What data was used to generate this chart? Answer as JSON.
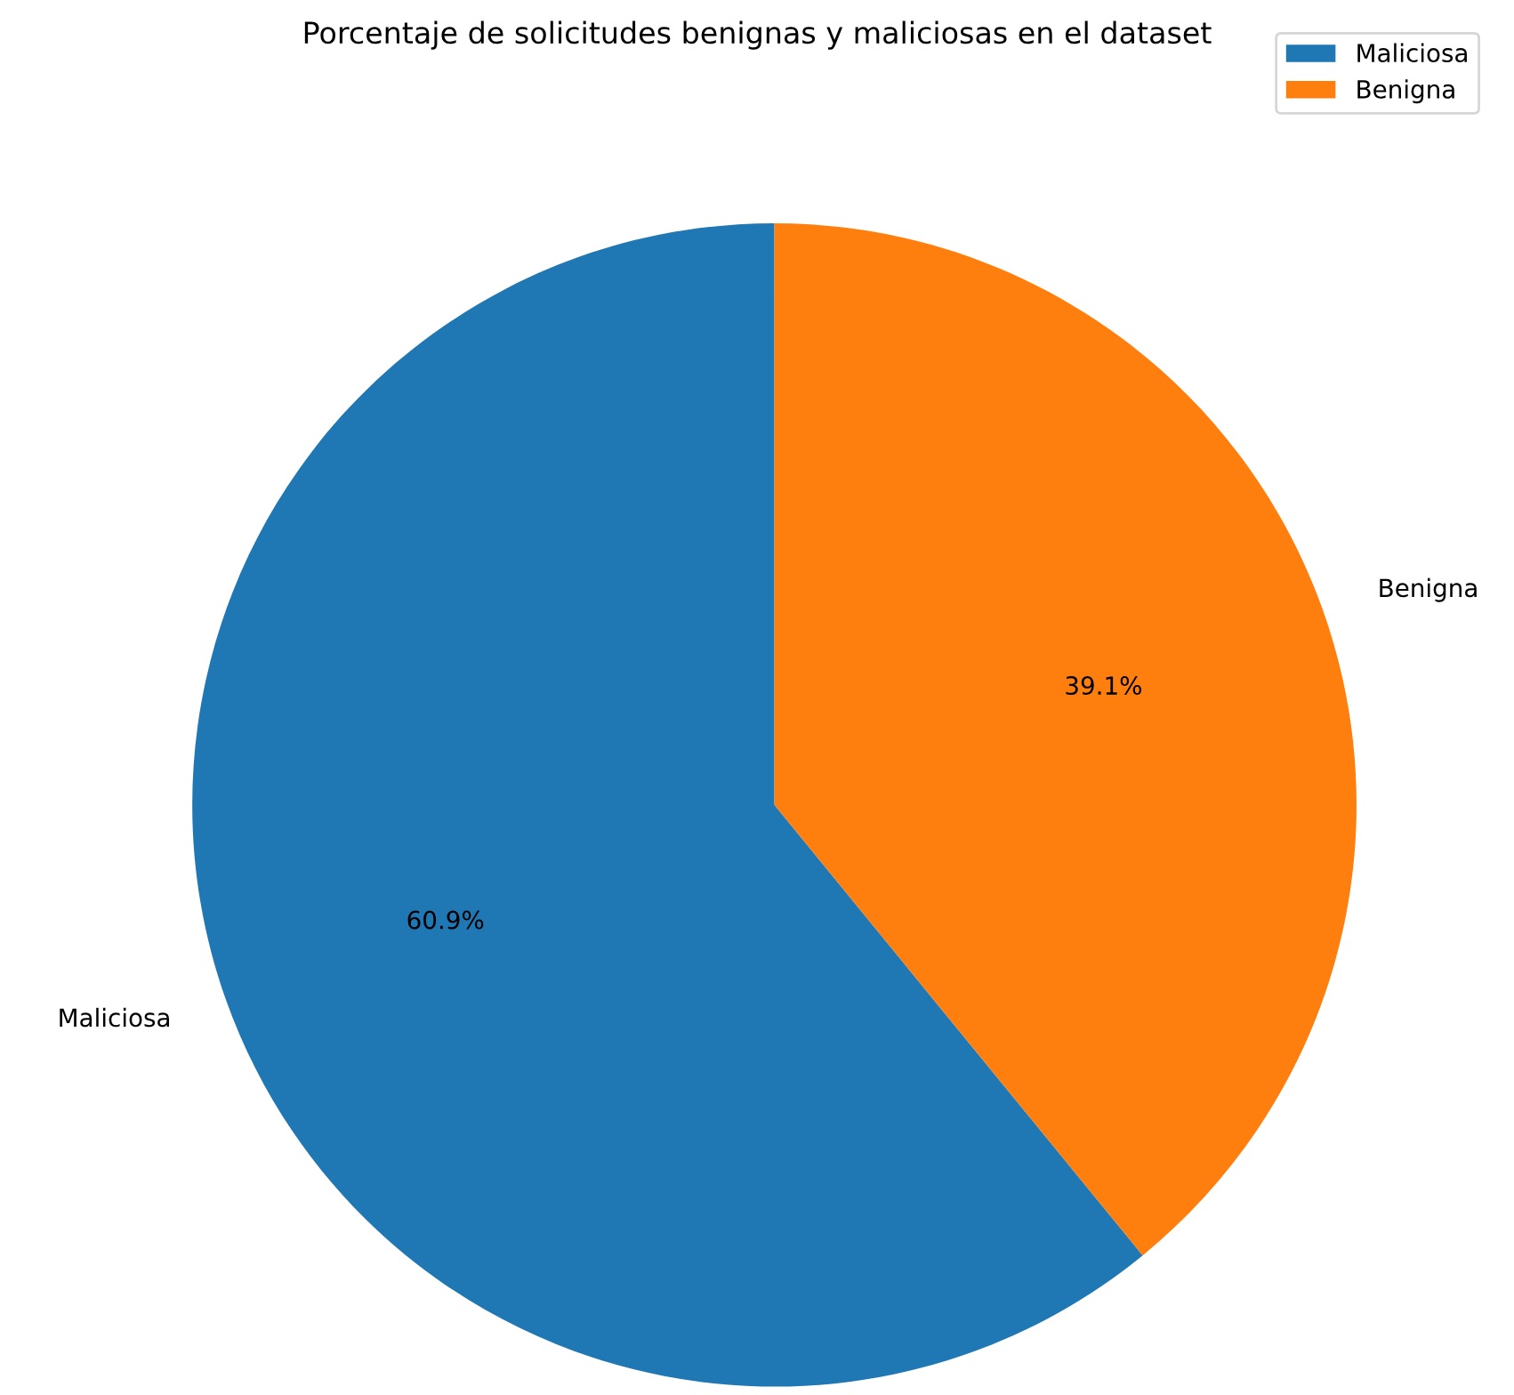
{
  "chart_data": {
    "type": "pie",
    "title": "Porcentaje de solicitudes benignas y maliciosas en el dataset",
    "categories": [
      "Maliciosa",
      "Benigna"
    ],
    "values": [
      60.9,
      39.1
    ],
    "colors": [
      "#1f77b4",
      "#ff7f0e"
    ],
    "value_labels": [
      "60.9%",
      "39.1%"
    ],
    "legend": "top right"
  }
}
